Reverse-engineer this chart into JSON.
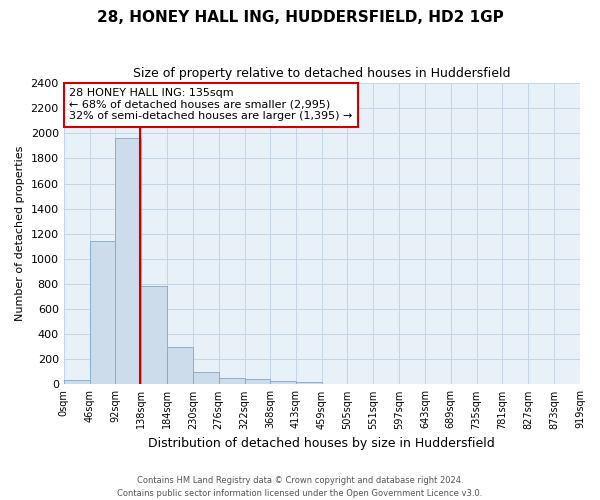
{
  "title": "28, HONEY HALL ING, HUDDERSFIELD, HD2 1GP",
  "subtitle": "Size of property relative to detached houses in Huddersfield",
  "xlabel": "Distribution of detached houses by size in Huddersfield",
  "ylabel": "Number of detached properties",
  "footer_line1": "Contains HM Land Registry data © Crown copyright and database right 2024.",
  "footer_line2": "Contains public sector information licensed under the Open Government Licence v3.0.",
  "bin_edges": [
    0,
    46,
    92,
    138,
    184,
    230,
    276,
    322,
    368,
    413,
    459,
    505,
    551,
    597,
    643,
    689,
    735,
    781,
    827,
    873,
    919
  ],
  "bar_heights": [
    35,
    1140,
    1960,
    780,
    300,
    100,
    50,
    40,
    25,
    20,
    0,
    0,
    0,
    0,
    0,
    0,
    0,
    0,
    0,
    0
  ],
  "bar_color": "#cddceb",
  "bar_edge_color": "#7fa8c9",
  "property_size": 135,
  "property_line_color": "#cc0000",
  "annotation_line1": "28 HONEY HALL ING: 135sqm",
  "annotation_line2": "← 68% of detached houses are smaller (2,995)",
  "annotation_line3": "32% of semi-detached houses are larger (1,395) →",
  "annotation_box_edgecolor": "#cc0000",
  "ylim": [
    0,
    2400
  ],
  "yticks": [
    0,
    200,
    400,
    600,
    800,
    1000,
    1200,
    1400,
    1600,
    1800,
    2000,
    2200,
    2400
  ],
  "grid_color": "#c5d5e5",
  "background_color": "#e8f0f8",
  "title_fontsize": 11,
  "subtitle_fontsize": 9,
  "ylabel_fontsize": 8,
  "xlabel_fontsize": 9,
  "ytick_fontsize": 8,
  "xtick_fontsize": 7
}
